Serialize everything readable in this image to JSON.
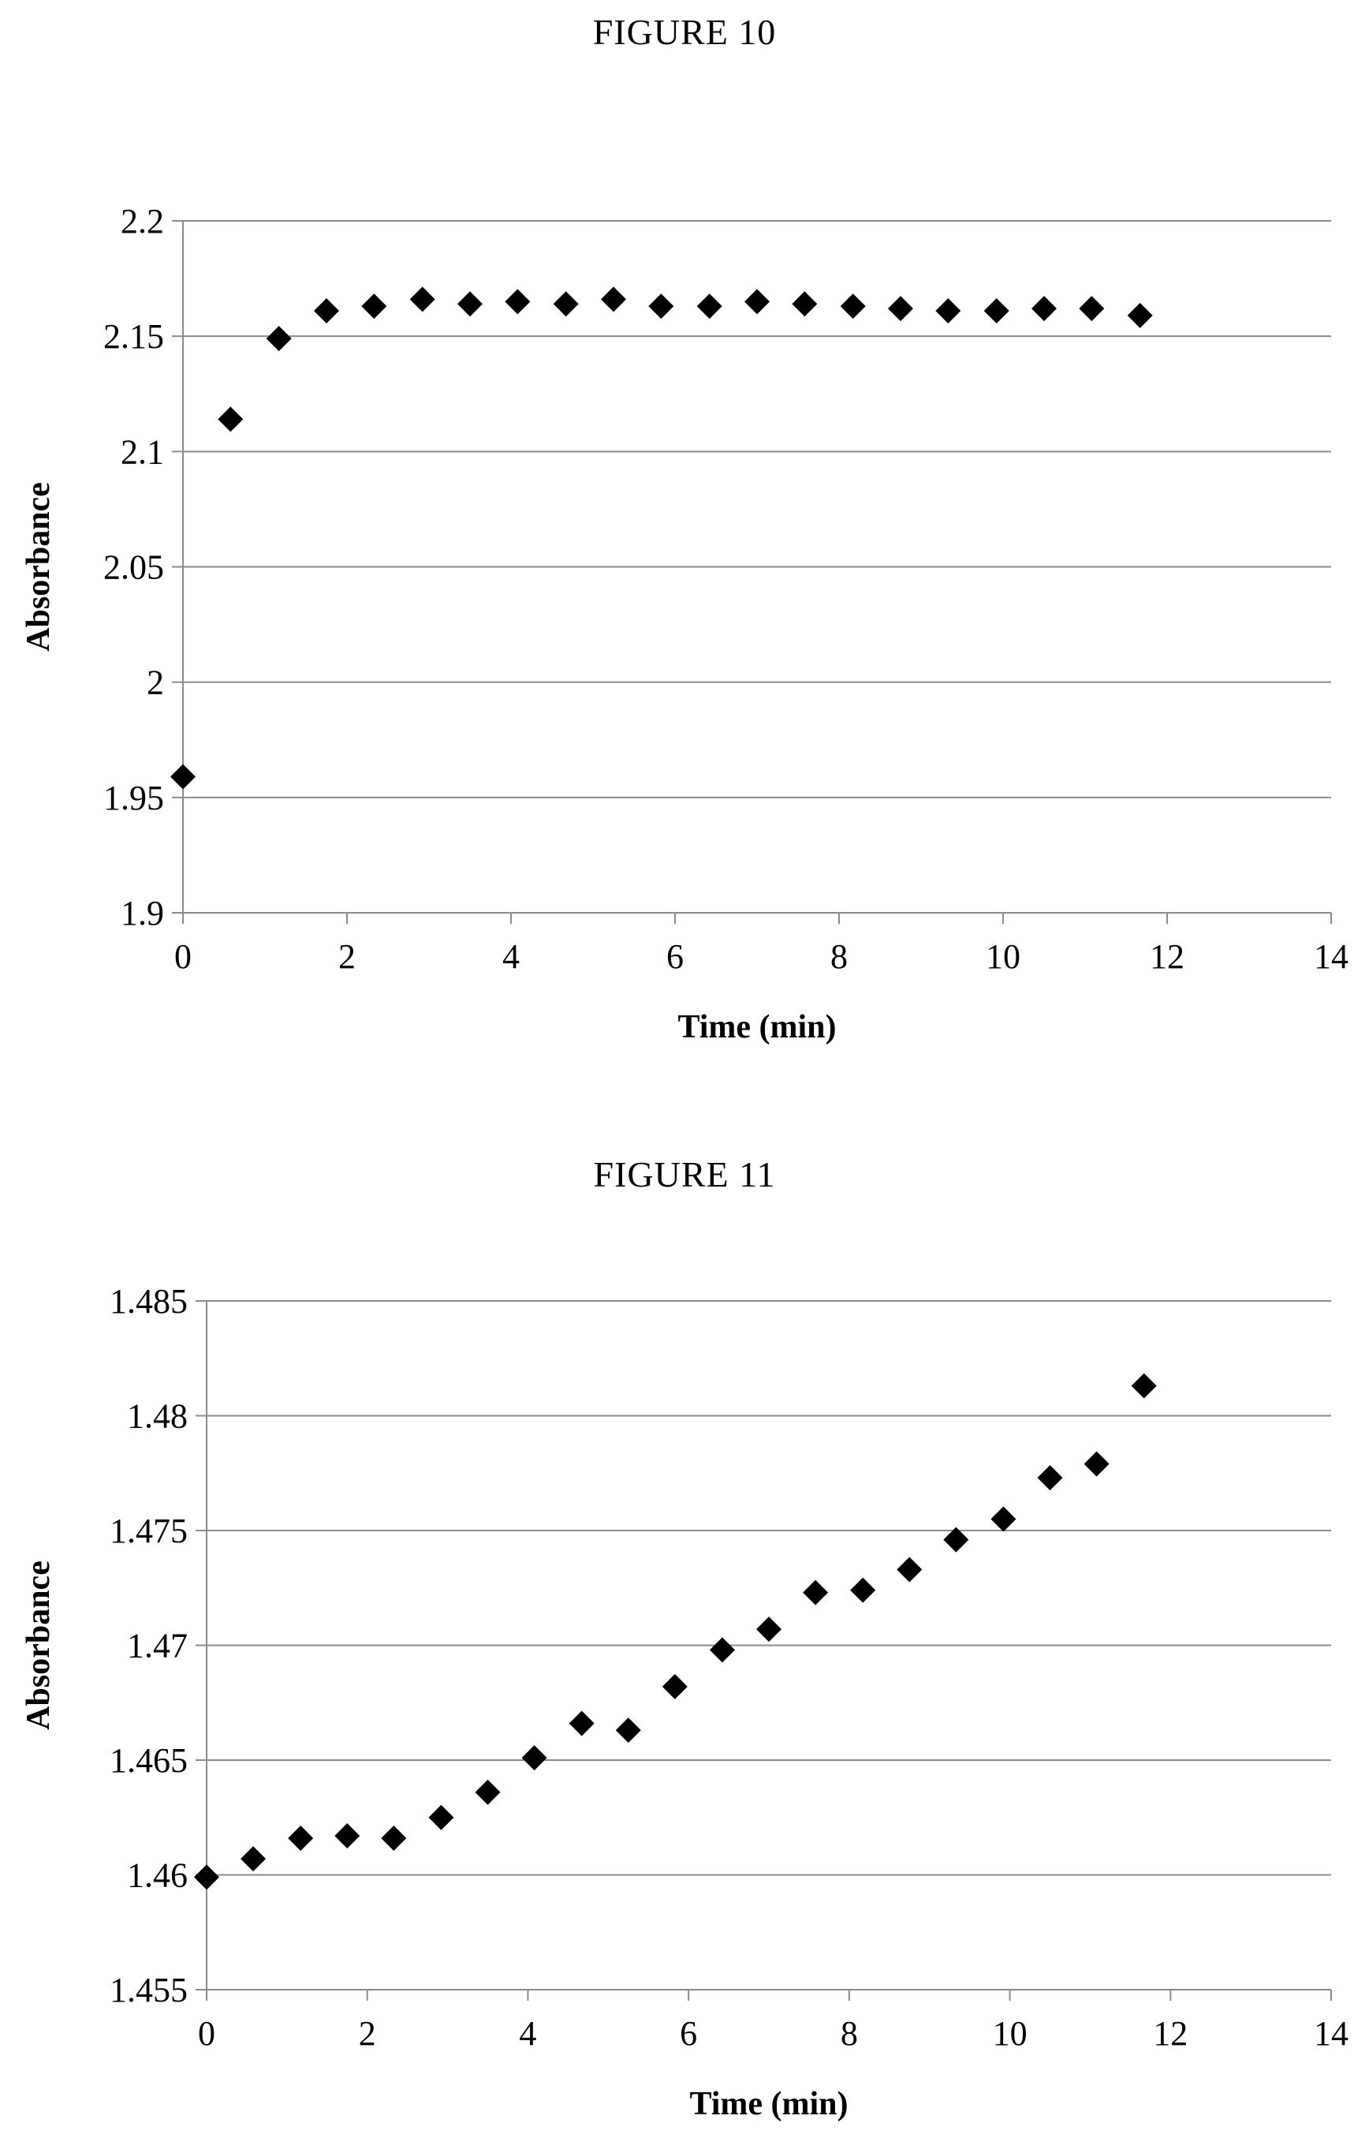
{
  "chart_data": [
    {
      "type": "scatter",
      "title": "FIGURE 10",
      "xlabel": "Time (min)",
      "ylabel": "Absorbance",
      "xlim": [
        0,
        14
      ],
      "ylim": [
        1.9,
        2.2
      ],
      "xticks": [
        "0",
        "2",
        "4",
        "6",
        "8",
        "10",
        "12",
        "14"
      ],
      "yticks": [
        "1.9",
        "1.95",
        "2",
        "2.05",
        "2.1",
        "2.15",
        "2.2"
      ],
      "grid": "horizontal",
      "marker": "diamond",
      "color": "#000000",
      "series": [
        {
          "x": [
            0,
            0.58,
            1.17,
            1.75,
            2.33,
            2.92,
            3.5,
            4.08,
            4.67,
            5.25,
            5.83,
            6.42,
            7.0,
            7.58,
            8.17,
            8.75,
            9.33,
            9.92,
            10.5,
            11.08,
            11.67
          ],
          "y": [
            1.959,
            2.114,
            2.149,
            2.161,
            2.163,
            2.166,
            2.164,
            2.165,
            2.164,
            2.166,
            2.163,
            2.163,
            2.165,
            2.164,
            2.163,
            2.162,
            2.161,
            2.161,
            2.162,
            2.162,
            2.159
          ]
        }
      ]
    },
    {
      "type": "scatter",
      "title": "FIGURE 11",
      "xlabel": "Time (min)",
      "ylabel": "Absorbance",
      "xlim": [
        0,
        14
      ],
      "ylim": [
        1.455,
        1.485
      ],
      "xticks": [
        "0",
        "2",
        "4",
        "6",
        "8",
        "10",
        "12",
        "14"
      ],
      "yticks": [
        "1.455",
        "1.46",
        "1.465",
        "1.47",
        "1.475",
        "1.48",
        "1.485"
      ],
      "grid": "horizontal",
      "marker": "diamond",
      "color": "#000000",
      "series": [
        {
          "x": [
            0,
            0.58,
            1.17,
            1.75,
            2.33,
            2.92,
            3.5,
            4.08,
            4.67,
            5.25,
            5.83,
            6.42,
            7.0,
            7.58,
            8.17,
            8.75,
            9.33,
            9.92,
            10.5,
            11.08,
            11.67
          ],
          "y": [
            1.4599,
            1.4607,
            1.4616,
            1.4617,
            1.4616,
            1.4625,
            1.4636,
            1.4651,
            1.4666,
            1.4663,
            1.4682,
            1.4698,
            1.4707,
            1.4723,
            1.4724,
            1.4733,
            1.4746,
            1.4755,
            1.4773,
            1.4779,
            1.4813
          ]
        }
      ]
    }
  ]
}
